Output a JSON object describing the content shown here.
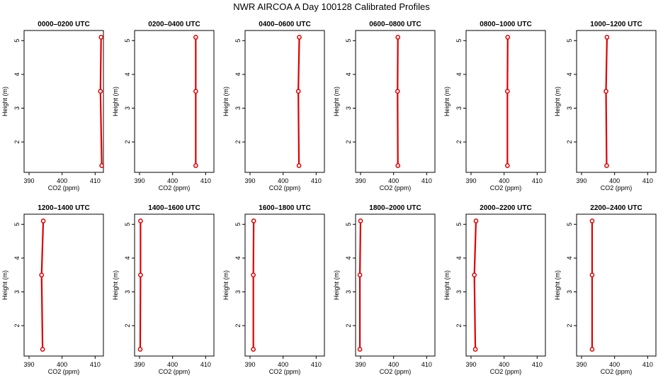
{
  "title": "NWR AIRCOA A  Day 100128  Calibrated Profiles",
  "colors": {
    "series": "#dd0000",
    "axis": "#000000",
    "background": "#ffffff"
  },
  "chart_data": {
    "type": "line",
    "xlabel": "CO2 (ppm)",
    "ylabel": "Height (m)",
    "xlim": [
      388.5,
      412.5
    ],
    "ylim": [
      1.1,
      5.3
    ],
    "xticks": [
      390,
      400,
      410
    ],
    "yticks": [
      2,
      3,
      4,
      5
    ],
    "heights": [
      1.3,
      3.5,
      5.1
    ],
    "panels": [
      {
        "label": "0000–0200 UTC",
        "values": [
          412.0,
          411.6,
          411.8
        ]
      },
      {
        "label": "0200–0400 UTC",
        "values": [
          407.0,
          407.0,
          407.0
        ]
      },
      {
        "label": "0400–0600 UTC",
        "values": [
          404.8,
          404.6,
          404.9
        ]
      },
      {
        "label": "0600–0800 UTC",
        "values": [
          401.3,
          401.2,
          401.3
        ]
      },
      {
        "label": "0800–1000 UTC",
        "values": [
          401.0,
          401.0,
          401.1
        ]
      },
      {
        "label": "1000–1200 UTC",
        "values": [
          397.6,
          397.4,
          397.7
        ]
      },
      {
        "label": "1200–1400 UTC",
        "values": [
          394.1,
          393.8,
          394.3
        ]
      },
      {
        "label": "1400–1600 UTC",
        "values": [
          390.2,
          390.3,
          390.3
        ]
      },
      {
        "label": "1600–1800 UTC",
        "values": [
          391.0,
          391.0,
          391.1
        ]
      },
      {
        "label": "1800–2000 UTC",
        "values": [
          389.8,
          389.8,
          390.0
        ]
      },
      {
        "label": "2000–2200 UTC",
        "values": [
          391.3,
          391.0,
          391.5
        ]
      },
      {
        "label": "2200–2400 UTC",
        "values": [
          393.2,
          393.2,
          393.2
        ]
      }
    ]
  }
}
